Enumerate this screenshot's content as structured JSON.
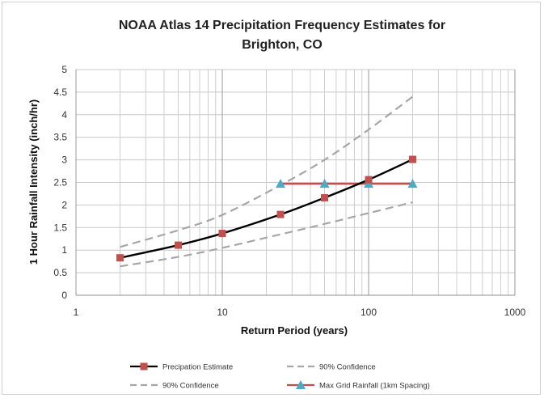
{
  "chart_data": {
    "type": "line",
    "title_line1": "NOAA Atlas 14 Precipitation Frequency Estimates for",
    "title_line2": "Brighton, CO",
    "xlabel": "Return Period (years)",
    "ylabel": "1 Hour Rainfall Intensity (inch/hr)",
    "x_scale": "log",
    "xlim": [
      1,
      1000
    ],
    "ylim": [
      0,
      5
    ],
    "x_ticks": [
      "1",
      "10",
      "100",
      "1000"
    ],
    "y_ticks": [
      "0",
      "0.5",
      "1",
      "1.5",
      "2",
      "2.5",
      "3",
      "3.5",
      "4",
      "4.5",
      "5"
    ],
    "grid": true,
    "legend_position": "bottom",
    "series": [
      {
        "name": "Precipation Estimate",
        "style": "solid",
        "marker": "square",
        "color": "#000000",
        "marker_color": "#c0504d",
        "x": [
          2,
          5,
          10,
          25,
          50,
          100,
          200
        ],
        "y": [
          0.83,
          1.11,
          1.37,
          1.79,
          2.16,
          2.56,
          3.01
        ]
      },
      {
        "name": "90% Confidence",
        "style": "dashed",
        "color": "#a6a6a6",
        "x": [
          2,
          5,
          10,
          25,
          50,
          100,
          200
        ],
        "y": [
          1.07,
          1.44,
          1.78,
          2.44,
          3.0,
          3.67,
          4.4
        ]
      },
      {
        "name": "90% Confidence",
        "style": "dashed",
        "color": "#a6a6a6",
        "x": [
          2,
          5,
          10,
          25,
          50,
          100,
          200
        ],
        "y": [
          0.64,
          0.85,
          1.05,
          1.35,
          1.58,
          1.82,
          2.06
        ]
      },
      {
        "name": "Max Grid Rainfall (1km Spacing)",
        "style": "solid",
        "marker": "triangle",
        "color": "#c0504d",
        "marker_color": "#4bacc6",
        "x": [
          25,
          50,
          100,
          200
        ],
        "y": [
          2.47,
          2.47,
          2.47,
          2.47
        ]
      }
    ]
  }
}
